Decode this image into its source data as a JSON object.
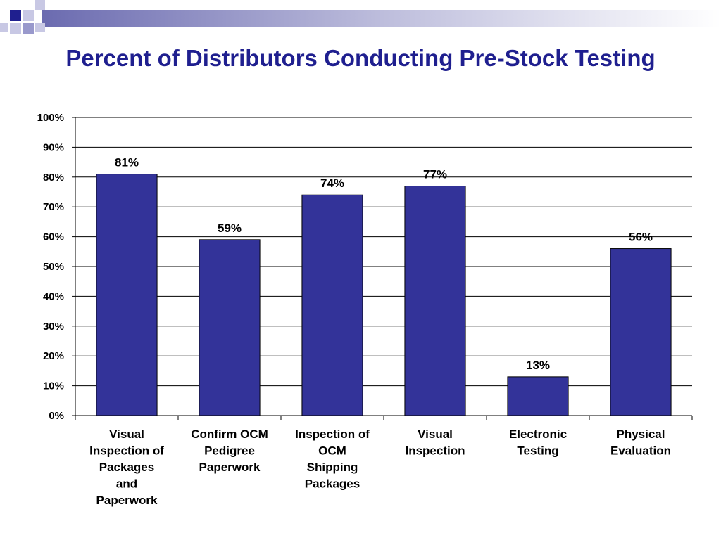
{
  "slide": {
    "title": "Percent of Distributors Conducting Pre-Stock Testing"
  },
  "theme": {
    "title_color": "#1f1f8f",
    "bar_color": "#333399",
    "decoration_colors": [
      "#1f1f8f",
      "#9999cc",
      "#c8c8e4"
    ]
  },
  "chart_data": {
    "type": "bar",
    "title": "",
    "xlabel": "",
    "ylabel": "",
    "categories": [
      [
        "Visual",
        "Inspection of",
        "Packages",
        "and",
        "Paperwork"
      ],
      [
        "Confirm OCM",
        "Pedigree",
        "Paperwork"
      ],
      [
        "Inspection of",
        "OCM",
        "Shipping",
        "Packages"
      ],
      [
        "Visual",
        "Inspection"
      ],
      [
        "Electronic",
        "Testing"
      ],
      [
        "Physical",
        "Evaluation"
      ]
    ],
    "values": [
      81,
      59,
      74,
      77,
      13,
      56
    ],
    "data_labels": [
      "81%",
      "59%",
      "74%",
      "77%",
      "13%",
      "56%"
    ],
    "ylim": [
      0,
      100
    ],
    "yticks": [
      0,
      10,
      20,
      30,
      40,
      50,
      60,
      70,
      80,
      90,
      100
    ],
    "ytick_labels": [
      "0%",
      "10%",
      "20%",
      "30%",
      "40%",
      "50%",
      "60%",
      "70%",
      "80%",
      "90%",
      "100%"
    ],
    "grid": true,
    "legend": "none"
  }
}
